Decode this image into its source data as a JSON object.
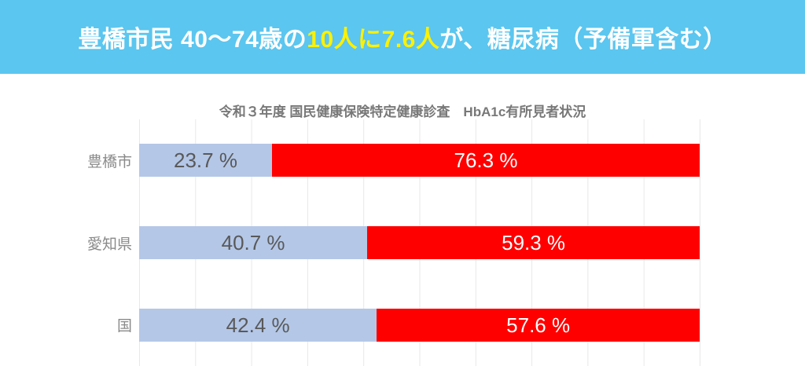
{
  "banner": {
    "background_color": "#5BC6EF",
    "text_color": "#FFFFFF",
    "highlight_color": "#FFF100",
    "headline_prefix": "豊橋市民 40～74歳の",
    "headline_highlight": "10人に7.6人",
    "headline_suffix": "が、糖尿病（予備軍含む）"
  },
  "chart_data": {
    "type": "bar",
    "orientation": "horizontal_stacked",
    "title": "令和３年度 国民健康保険特定健康診査　HbA1c有所見者状況",
    "title_color": "#787878",
    "categories": [
      "豊橋市",
      "愛知県",
      "国"
    ],
    "series": [
      {
        "name": "series-1",
        "color": "#B4C7E7",
        "values": [
          23.7,
          40.7,
          42.4
        ]
      },
      {
        "name": "series-2",
        "color": "#FF0000",
        "values": [
          76.3,
          59.3,
          57.6
        ]
      }
    ],
    "data_labels": [
      [
        "23.7 %",
        "76.3 %"
      ],
      [
        "40.7 %",
        "59.3 %"
      ],
      [
        "42.4 %",
        "57.6 %"
      ]
    ],
    "xlim": [
      0,
      100
    ],
    "gridlines": {
      "axis": "x",
      "interval_percent": 10,
      "color": "#E8E8E8"
    },
    "legend": "none"
  }
}
